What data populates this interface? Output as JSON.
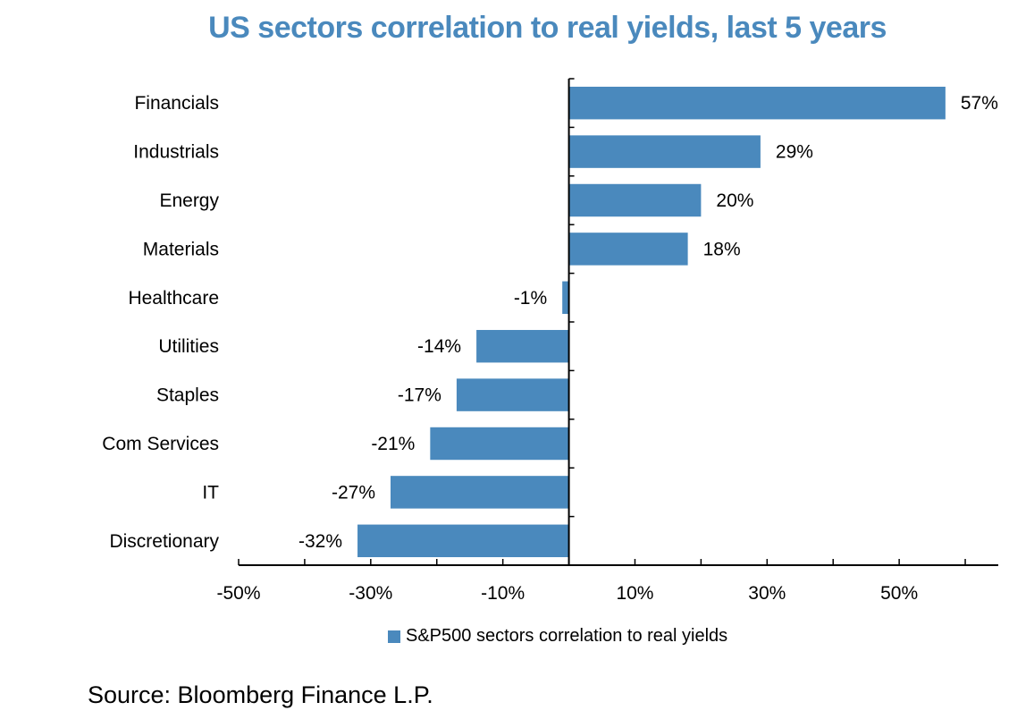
{
  "title": "US sectors correlation to real yields, last 5 years",
  "source": "Source: Bloomberg Finance L.P.",
  "colors": {
    "bar": "#4a89bd",
    "title": "#4a89bd",
    "axis": "#000000"
  },
  "chart_data": {
    "type": "bar",
    "orientation": "horizontal",
    "title": "US sectors correlation to real yields, last 5 years",
    "xlabel": "",
    "ylabel": "",
    "categories": [
      "Financials",
      "Industrials",
      "Energy",
      "Materials",
      "Healthcare",
      "Utilities",
      "Staples",
      "Com Services",
      "IT",
      "Discretionary"
    ],
    "series": [
      {
        "name": "S&P500 sectors correlation to real yields",
        "values": [
          57,
          29,
          20,
          18,
          -1,
          -14,
          -17,
          -21,
          -27,
          -32
        ],
        "labels": [
          "57%",
          "29%",
          "20%",
          "18%",
          "-1%",
          "-14%",
          "-17%",
          "-21%",
          "-27%",
          "-32%"
        ]
      }
    ],
    "xlim": [
      -50,
      65
    ],
    "xticks": [
      -50,
      -30,
      -10,
      10,
      30,
      50
    ],
    "xtick_labels": [
      "-50%",
      "-30%",
      "-10%",
      "10%",
      "30%",
      "50%"
    ],
    "grid": false,
    "legend_position": "bottom-center"
  }
}
